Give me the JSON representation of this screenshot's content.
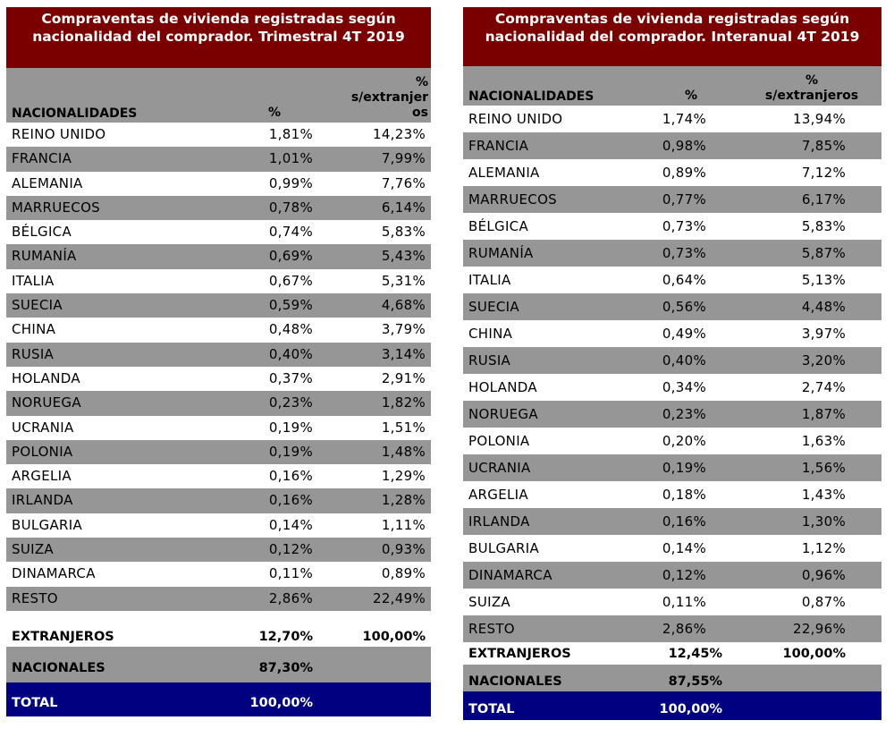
{
  "table1": {
    "title": "Compraventas de vivienda registradas según nacionalidad del comprador. Trimestral 4T 2019",
    "headers": {
      "nat": "NACIONALIDADES",
      "pct": "%",
      "pct_ext": "% s/extranjeros"
    },
    "rows": [
      {
        "name": "REINO UNIDO",
        "pct": "1,81%",
        "ext": "14,23%"
      },
      {
        "name": "FRANCIA",
        "pct": "1,01%",
        "ext": "7,99%"
      },
      {
        "name": "ALEMANIA",
        "pct": "0,99%",
        "ext": "7,76%"
      },
      {
        "name": "MARRUECOS",
        "pct": "0,78%",
        "ext": "6,14%"
      },
      {
        "name": "BÉLGICA",
        "pct": "0,74%",
        "ext": "5,83%"
      },
      {
        "name": "RUMANÍA",
        "pct": "0,69%",
        "ext": "5,43%"
      },
      {
        "name": "ITALIA",
        "pct": "0,67%",
        "ext": "5,31%"
      },
      {
        "name": "SUECIA",
        "pct": "0,59%",
        "ext": "4,68%"
      },
      {
        "name": "CHINA",
        "pct": "0,48%",
        "ext": "3,79%"
      },
      {
        "name": "RUSIA",
        "pct": "0,40%",
        "ext": "3,14%"
      },
      {
        "name": "HOLANDA",
        "pct": "0,37%",
        "ext": "2,91%"
      },
      {
        "name": "NORUEGA",
        "pct": "0,23%",
        "ext": "1,82%"
      },
      {
        "name": "UCRANIA",
        "pct": "0,19%",
        "ext": "1,51%"
      },
      {
        "name": "POLONIA",
        "pct": "0,19%",
        "ext": "1,48%"
      },
      {
        "name": "ARGELIA",
        "pct": "0,16%",
        "ext": "1,29%"
      },
      {
        "name": "IRLANDA",
        "pct": "0,16%",
        "ext": "1,28%"
      },
      {
        "name": "BULGARIA",
        "pct": "0,14%",
        "ext": "1,11%"
      },
      {
        "name": "SUIZA",
        "pct": "0,12%",
        "ext": "0,93%"
      },
      {
        "name": "DINAMARCA",
        "pct": "0,11%",
        "ext": "0,89%"
      },
      {
        "name": "RESTO",
        "pct": "2,86%",
        "ext": "22,49%"
      }
    ],
    "extranjeros": {
      "label": "EXTRANJEROS",
      "pct": "12,70%",
      "ext": "100,00%"
    },
    "nacionales": {
      "label": "NACIONALES",
      "pct": "87,30%"
    },
    "total": {
      "label": "TOTAL",
      "pct": "100,00%"
    }
  },
  "table2": {
    "title": "Compraventas de vivienda registradas según nacionalidad del comprador. Interanual 4T 2019",
    "headers": {
      "nat": "NACIONALIDADES",
      "pct": "%",
      "pct_ext": "% s/extranjeros"
    },
    "rows": [
      {
        "name": "REINO UNIDO",
        "pct": "1,74%",
        "ext": "13,94%"
      },
      {
        "name": "FRANCIA",
        "pct": "0,98%",
        "ext": "7,85%"
      },
      {
        "name": "ALEMANIA",
        "pct": "0,89%",
        "ext": "7,12%"
      },
      {
        "name": "MARRUECOS",
        "pct": "0,77%",
        "ext": "6,17%"
      },
      {
        "name": "BÉLGICA",
        "pct": "0,73%",
        "ext": "5,83%"
      },
      {
        "name": "RUMANÍA",
        "pct": "0,73%",
        "ext": "5,87%"
      },
      {
        "name": "ITALIA",
        "pct": "0,64%",
        "ext": "5,13%"
      },
      {
        "name": "SUECIA",
        "pct": "0,56%",
        "ext": "4,48%"
      },
      {
        "name": "CHINA",
        "pct": "0,49%",
        "ext": "3,97%"
      },
      {
        "name": "RUSIA",
        "pct": "0,40%",
        "ext": "3,20%"
      },
      {
        "name": "HOLANDA",
        "pct": "0,34%",
        "ext": "2,74%"
      },
      {
        "name": "NORUEGA",
        "pct": "0,23%",
        "ext": "1,87%"
      },
      {
        "name": "POLONIA",
        "pct": "0,20%",
        "ext": "1,63%"
      },
      {
        "name": "UCRANIA",
        "pct": "0,19%",
        "ext": "1,56%"
      },
      {
        "name": "ARGELIA",
        "pct": "0,18%",
        "ext": "1,43%"
      },
      {
        "name": "IRLANDA",
        "pct": "0,16%",
        "ext": "1,30%"
      },
      {
        "name": "BULGARIA",
        "pct": "0,14%",
        "ext": "1,12%"
      },
      {
        "name": "DINAMARCA",
        "pct": "0,12%",
        "ext": "0,96%"
      },
      {
        "name": "SUIZA",
        "pct": "0,11%",
        "ext": "0,87%"
      },
      {
        "name": "RESTO",
        "pct": "2,86%",
        "ext": "22,96%"
      }
    ],
    "extranjeros": {
      "label": "EXTRANJEROS",
      "pct": "12,45%",
      "ext": "100,00%"
    },
    "nacionales": {
      "label": "NACIONALES",
      "pct": "87,55%"
    },
    "total": {
      "label": "TOTAL",
      "pct": "100,00%"
    }
  },
  "colors": {
    "title_bg": "#7a0000",
    "header_bg": "#969696",
    "total_bg": "#000080"
  }
}
